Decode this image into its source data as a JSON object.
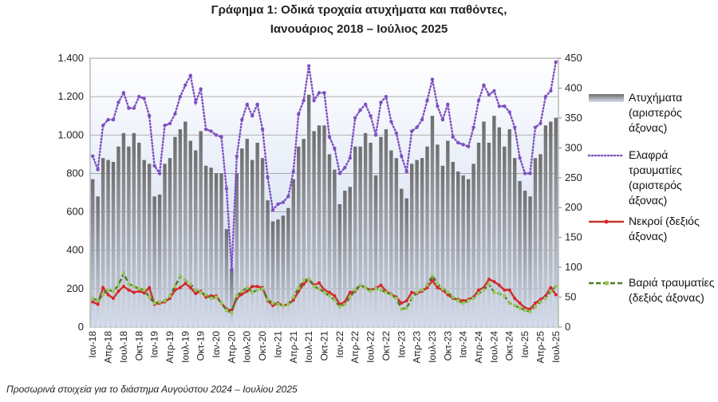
{
  "chart_data": {
    "type": "combo",
    "title_lines": [
      "Γράφημα 1: Οδικά τροχαία ατυχήματα και παθόντες,",
      "Ιανουάριος 2018 – Ιούλιος 2025"
    ],
    "footnote": "Προσωρινά στοιχεία για το διάστημα Αυγούστου 2024 – Ιουλίου 2025",
    "categories": [
      "Ιαν-18",
      null,
      null,
      "Απρ-18",
      null,
      null,
      "Ιουλ-18",
      null,
      null,
      "Οκτ-18",
      null,
      null,
      "Ιαν-19",
      null,
      null,
      "Απρ-19",
      null,
      null,
      "Ιουλ-19",
      null,
      null,
      "Οκτ-19",
      null,
      null,
      "Ιαν-20",
      null,
      null,
      "Απρ-20",
      null,
      null,
      "Ιουλ-20",
      null,
      null,
      "Οκτ-20",
      null,
      null,
      "Ιαν-21",
      null,
      null,
      "Απρ-21",
      null,
      null,
      "Ιουλ-21",
      null,
      null,
      "Οκτ-21",
      null,
      null,
      "Ιαν-22",
      null,
      null,
      "Απρ-22",
      null,
      null,
      "Ιουλ-22",
      null,
      null,
      "Οκτ-22",
      null,
      null,
      "Ιαν-23",
      null,
      null,
      "Απρ-23",
      null,
      null,
      "Ιουλ-23",
      null,
      null,
      "Οκτ-23",
      null,
      null,
      "Ιαν-24",
      null,
      null,
      "Απρ-24",
      null,
      null,
      "Ιουλ-24",
      null,
      null,
      "Οκτ-24",
      null,
      null,
      "Ιαν-25",
      null,
      null,
      "Απρ-25",
      null,
      null,
      "Ιουλ-25"
    ],
    "ylim": [
      0,
      1400
    ],
    "yticks": [
      0,
      200,
      400,
      600,
      800,
      {
        "value": 1000,
        "label": "1.000"
      },
      {
        "value": 1200,
        "label": "1.200"
      },
      {
        "value": 1400,
        "label": "1.400"
      }
    ],
    "y2lim": [
      0,
      450
    ],
    "y2ticks": [
      0,
      50,
      100,
      150,
      200,
      250,
      300,
      350,
      400,
      450
    ],
    "grid": true,
    "series": [
      {
        "name": "Ατυχήματα (αριστερός άξονας)",
        "kind": "bar",
        "color": "#8c8c8c",
        "values": [
          770,
          680,
          880,
          870,
          860,
          940,
          1010,
          940,
          1010,
          960,
          870,
          850,
          680,
          690,
          850,
          880,
          990,
          1030,
          1070,
          970,
          920,
          1020,
          840,
          830,
          800,
          800,
          510,
          300,
          800,
          930,
          980,
          870,
          960,
          880,
          660,
          550,
          560,
          580,
          620,
          770,
          940,
          980,
          1210,
          1020,
          1050,
          1050,
          900,
          820,
          640,
          710,
          730,
          940,
          940,
          1010,
          960,
          790,
          990,
          1030,
          920,
          880,
          720,
          670,
          850,
          870,
          880,
          940,
          1100,
          950,
          840,
          970,
          860,
          810,
          790,
          770,
          850,
          960,
          1070,
          960,
          1100,
          1040,
          940,
          1030,
          880,
          760,
          710,
          680,
          880,
          900,
          1050,
          1070,
          1090
        ]
      },
      {
        "name": "Ελαφρά τραυματίες (αριστερός άξονας)",
        "kind": "dotted",
        "color": "#7d4fc0",
        "values": [
          890,
          820,
          1050,
          1080,
          1080,
          1170,
          1220,
          1140,
          1140,
          1200,
          1190,
          1100,
          840,
          800,
          1050,
          1060,
          1110,
          1200,
          1260,
          1310,
          1170,
          1240,
          1030,
          1020,
          1000,
          990,
          720,
          300,
          890,
          1080,
          1160,
          1100,
          1160,
          1030,
          780,
          610,
          640,
          650,
          680,
          810,
          1110,
          1180,
          1360,
          1180,
          1220,
          1220,
          990,
          930,
          800,
          830,
          880,
          1090,
          1130,
          1160,
          1100,
          1000,
          1170,
          1200,
          1070,
          1010,
          890,
          810,
          1020,
          1040,
          1080,
          1180,
          1290,
          1150,
          1080,
          1160,
          990,
          960,
          950,
          940,
          1040,
          1180,
          1260,
          1210,
          1230,
          1150,
          1150,
          1120,
          1040,
          880,
          800,
          800,
          1040,
          1060,
          1200,
          1230,
          1380
        ]
      },
      {
        "name": "Νεκροί (δεξιός άξονας)",
        "kind": "line",
        "axis": "y2",
        "color": "#c0392b",
        "values": [
          42,
          38,
          66,
          54,
          48,
          60,
          68,
          62,
          58,
          60,
          57,
          66,
          38,
          40,
          42,
          48,
          62,
          66,
          73,
          66,
          56,
          60,
          50,
          52,
          52,
          40,
          30,
          28,
          48,
          55,
          60,
          68,
          68,
          66,
          44,
          36,
          40,
          36,
          38,
          45,
          60,
          72,
          80,
          70,
          74,
          62,
          58,
          52,
          38,
          42,
          58,
          60,
          70,
          66,
          62,
          65,
          70,
          60,
          55,
          50,
          40,
          44,
          58,
          56,
          60,
          66,
          78,
          66,
          62,
          54,
          48,
          46,
          44,
          46,
          50,
          62,
          66,
          80,
          76,
          70,
          62,
          62,
          48,
          40,
          32,
          30,
          40,
          46,
          52,
          66,
          54
        ]
      },
      {
        "name": "Βαριά τραυματίες (δεξιός άξονας)",
        "kind": "dashed",
        "axis": "y2",
        "color": "#4e7a27",
        "values": [
          48,
          44,
          55,
          62,
          60,
          70,
          90,
          72,
          68,
          64,
          62,
          50,
          40,
          42,
          44,
          52,
          68,
          85,
          78,
          72,
          62,
          58,
          54,
          48,
          50,
          40,
          28,
          24,
          52,
          60,
          66,
          58,
          62,
          64,
          46,
          40,
          38,
          36,
          38,
          50,
          65,
          78,
          80,
          68,
          64,
          58,
          52,
          45,
          34,
          38,
          50,
          62,
          70,
          66,
          60,
          64,
          62,
          58,
          54,
          48,
          30,
          32,
          48,
          58,
          62,
          70,
          86,
          72,
          64,
          58,
          50,
          44,
          40,
          44,
          48,
          56,
          62,
          72,
          58,
          56,
          52,
          40,
          36,
          32,
          28,
          26,
          34,
          42,
          48,
          60,
          68
        ]
      }
    ]
  }
}
